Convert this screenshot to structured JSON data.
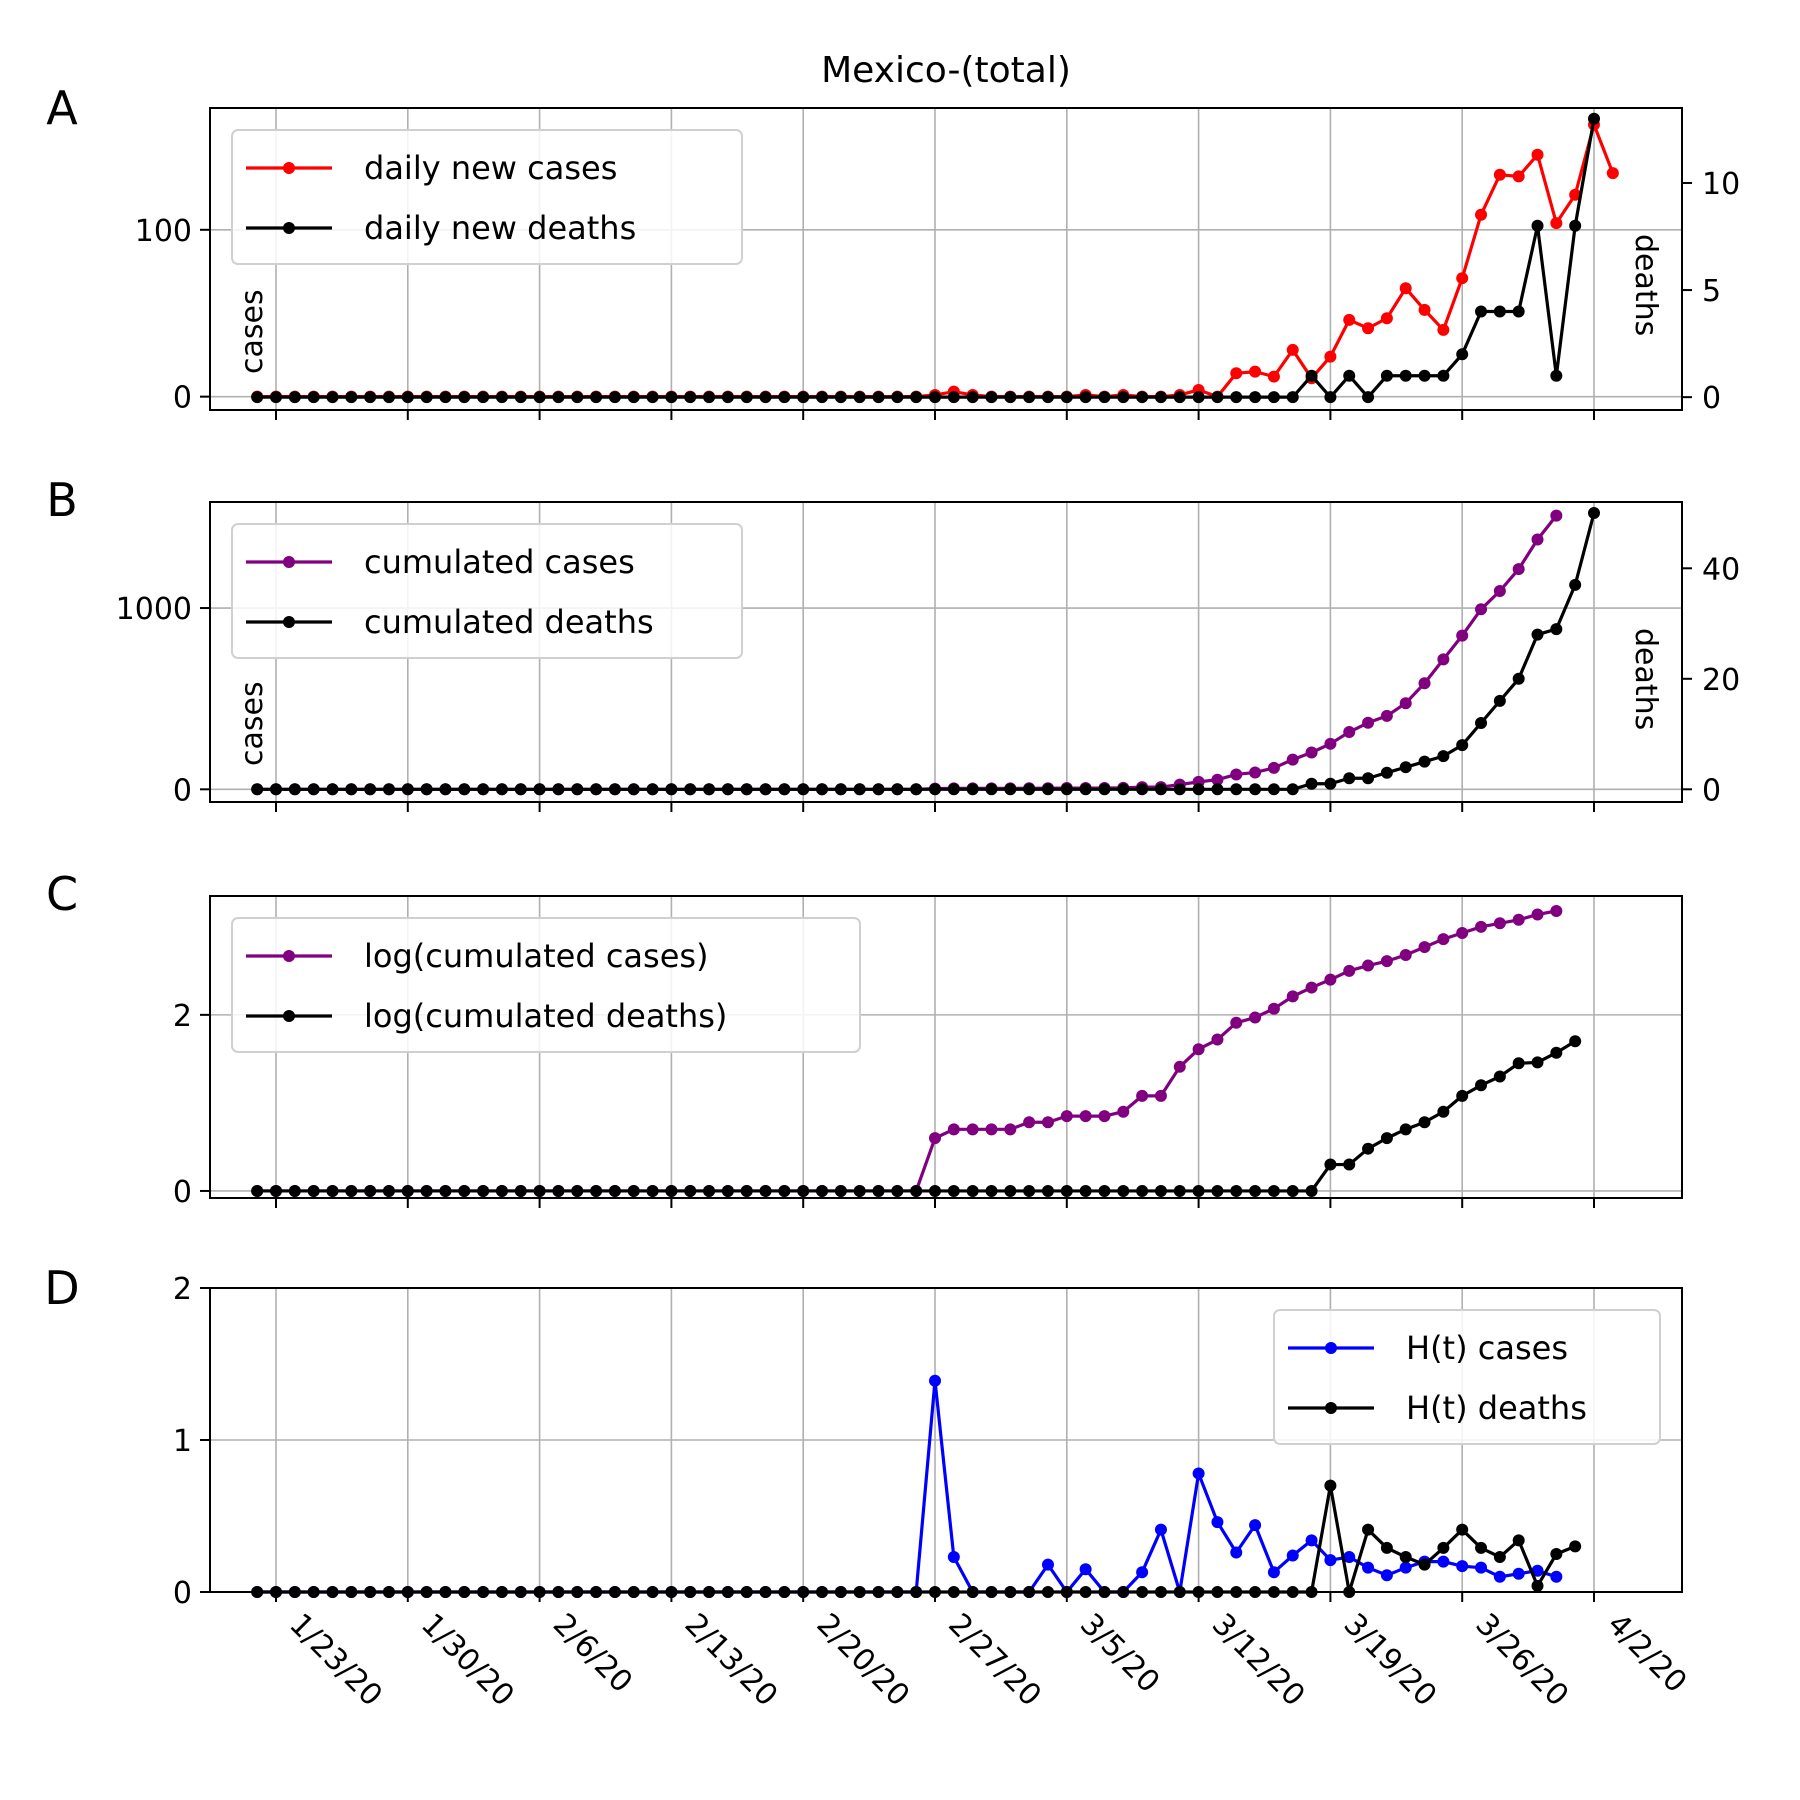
{
  "title": "Mexico-(total)",
  "x_tick_labels": [
    "1/23/20",
    "1/30/20",
    "2/6/20",
    "2/13/20",
    "2/20/20",
    "2/27/20",
    "3/5/20",
    "3/12/20",
    "3/19/20",
    "3/26/20",
    "4/2/20"
  ],
  "colors": {
    "cases_daily": "#ff0000",
    "cases_cum": "#800080",
    "deaths": "#000000",
    "h_cases": "#0000ff"
  },
  "chart_data": [
    {
      "type": "line",
      "panel": "A",
      "x_start_date": "1/22/20",
      "x": "daily dates 1/22/20 - 4/3/20",
      "ylabel": "cases",
      "ylabel_right": "deaths",
      "ylim": [
        -8,
        173
      ],
      "ylim_right": [
        -0.6,
        13.5
      ],
      "yticks": [
        0,
        100
      ],
      "yticks_right": [
        0,
        5,
        10
      ],
      "legend_loc": "upper-left",
      "series": [
        {
          "name": "daily new cases",
          "axis": "left",
          "values": [
            0,
            0,
            0,
            0,
            0,
            0,
            0,
            0,
            0,
            0,
            0,
            0,
            0,
            0,
            0,
            0,
            0,
            0,
            0,
            0,
            0,
            0,
            0,
            0,
            0,
            0,
            0,
            0,
            0,
            0,
            0,
            0,
            0,
            0,
            0,
            0,
            1,
            3,
            1,
            0,
            0,
            0,
            0,
            0,
            1,
            0,
            1,
            0,
            0,
            1,
            4,
            0,
            14,
            15,
            12,
            28,
            11,
            24,
            46,
            41,
            47,
            65,
            52,
            40,
            71,
            109,
            133,
            132,
            145,
            104,
            121,
            163,
            134
          ]
        },
        {
          "name": "daily new deaths",
          "axis": "right",
          "values": [
            0,
            0,
            0,
            0,
            0,
            0,
            0,
            0,
            0,
            0,
            0,
            0,
            0,
            0,
            0,
            0,
            0,
            0,
            0,
            0,
            0,
            0,
            0,
            0,
            0,
            0,
            0,
            0,
            0,
            0,
            0,
            0,
            0,
            0,
            0,
            0,
            0,
            0,
            0,
            0,
            0,
            0,
            0,
            0,
            0,
            0,
            0,
            0,
            0,
            0,
            0,
            0,
            0,
            0,
            0,
            0,
            1,
            0,
            1,
            0,
            1,
            1,
            1,
            1,
            2,
            4,
            4,
            4,
            8,
            1,
            8,
            13
          ]
        }
      ]
    },
    {
      "type": "line",
      "panel": "B",
      "x_start_date": "1/22/20",
      "ylabel": "cases",
      "ylabel_right": "deaths",
      "ylim": [
        -70,
        1585
      ],
      "ylim_right": [
        -2.3,
        52
      ],
      "yticks": [
        0,
        1000
      ],
      "yticks_right": [
        0,
        20,
        40
      ],
      "legend_loc": "upper-left",
      "series": [
        {
          "name": "cumulated cases",
          "axis": "left",
          "values": [
            0,
            0,
            0,
            0,
            0,
            0,
            0,
            0,
            0,
            0,
            0,
            0,
            0,
            0,
            0,
            0,
            0,
            0,
            0,
            0,
            0,
            0,
            0,
            0,
            0,
            0,
            0,
            0,
            0,
            0,
            0,
            0,
            0,
            0,
            0,
            0,
            4,
            5,
            5,
            5,
            5,
            6,
            6,
            7,
            7,
            7,
            8,
            12,
            12,
            26,
            41,
            53,
            82,
            93,
            118,
            164,
            203,
            251,
            316,
            367,
            405,
            475,
            585,
            717,
            848,
            993,
            1094,
            1215,
            1378,
            1510
          ]
        },
        {
          "name": "cumulated deaths",
          "axis": "right",
          "values": [
            0,
            0,
            0,
            0,
            0,
            0,
            0,
            0,
            0,
            0,
            0,
            0,
            0,
            0,
            0,
            0,
            0,
            0,
            0,
            0,
            0,
            0,
            0,
            0,
            0,
            0,
            0,
            0,
            0,
            0,
            0,
            0,
            0,
            0,
            0,
            0,
            0,
            0,
            0,
            0,
            0,
            0,
            0,
            0,
            0,
            0,
            0,
            0,
            0,
            0,
            0,
            0,
            0,
            0,
            0,
            0,
            1,
            1,
            2,
            2,
            3,
            4,
            5,
            6,
            8,
            12,
            16,
            20,
            28,
            29,
            37,
            50
          ]
        }
      ]
    },
    {
      "type": "line",
      "panel": "C",
      "x_start_date": "1/22/20",
      "ylim": [
        -0.08,
        3.35
      ],
      "yticks": [
        0,
        2
      ],
      "legend_loc": "upper-left",
      "series": [
        {
          "name": "log(cumulated cases)",
          "axis": "left",
          "values": [
            0,
            0,
            0,
            0,
            0,
            0,
            0,
            0,
            0,
            0,
            0,
            0,
            0,
            0,
            0,
            0,
            0,
            0,
            0,
            0,
            0,
            0,
            0,
            0,
            0,
            0,
            0,
            0,
            0,
            0,
            0,
            0,
            0,
            0,
            0,
            0,
            0.6,
            0.7,
            0.7,
            0.7,
            0.7,
            0.78,
            0.78,
            0.85,
            0.85,
            0.85,
            0.9,
            1.08,
            1.08,
            1.41,
            1.61,
            1.72,
            1.91,
            1.97,
            2.07,
            2.21,
            2.31,
            2.4,
            2.5,
            2.56,
            2.61,
            2.68,
            2.77,
            2.86,
            2.93,
            3,
            3.04,
            3.08,
            3.14,
            3.18
          ]
        },
        {
          "name": "log(cumulated deaths)",
          "axis": "left",
          "values": [
            0,
            0,
            0,
            0,
            0,
            0,
            0,
            0,
            0,
            0,
            0,
            0,
            0,
            0,
            0,
            0,
            0,
            0,
            0,
            0,
            0,
            0,
            0,
            0,
            0,
            0,
            0,
            0,
            0,
            0,
            0,
            0,
            0,
            0,
            0,
            0,
            0,
            0,
            0,
            0,
            0,
            0,
            0,
            0,
            0,
            0,
            0,
            0,
            0,
            0,
            0,
            0,
            0,
            0,
            0,
            0,
            0,
            0.3,
            0.3,
            0.48,
            0.6,
            0.7,
            0.78,
            0.9,
            1.08,
            1.2,
            1.3,
            1.45,
            1.46,
            1.57,
            1.7
          ]
        }
      ]
    },
    {
      "type": "line",
      "panel": "D",
      "x_start_date": "1/22/20",
      "ylim": [
        0,
        2
      ],
      "yticks": [
        0,
        1,
        2
      ],
      "legend_loc": "upper-right",
      "series": [
        {
          "name": "H(t) cases",
          "axis": "left",
          "values": [
            0,
            0,
            0,
            0,
            0,
            0,
            0,
            0,
            0,
            0,
            0,
            0,
            0,
            0,
            0,
            0,
            0,
            0,
            0,
            0,
            0,
            0,
            0,
            0,
            0,
            0,
            0,
            0,
            0,
            0,
            0,
            0,
            0,
            0,
            0,
            0,
            1.39,
            0.23,
            0,
            0,
            0,
            0,
            0.18,
            0,
            0.15,
            0,
            0,
            0.13,
            0.41,
            0,
            0.78,
            0.46,
            0.26,
            0.44,
            0.13,
            0.24,
            0.34,
            0.21,
            0.23,
            0.16,
            0.11,
            0.16,
            0.2,
            0.2,
            0.17,
            0.16,
            0.1,
            0.12,
            0.14,
            0.1
          ]
        },
        {
          "name": "H(t) deaths",
          "axis": "left",
          "values": [
            0,
            0,
            0,
            0,
            0,
            0,
            0,
            0,
            0,
            0,
            0,
            0,
            0,
            0,
            0,
            0,
            0,
            0,
            0,
            0,
            0,
            0,
            0,
            0,
            0,
            0,
            0,
            0,
            0,
            0,
            0,
            0,
            0,
            0,
            0,
            0,
            0,
            0,
            0,
            0,
            0,
            0,
            0,
            0,
            0,
            0,
            0,
            0,
            0,
            0,
            0,
            0,
            0,
            0,
            0,
            0,
            0,
            0.7,
            0,
            0.41,
            0.29,
            0.23,
            0.18,
            0.29,
            0.41,
            0.29,
            0.23,
            0.34,
            0.04,
            0.25,
            0.3
          ]
        }
      ]
    }
  ]
}
